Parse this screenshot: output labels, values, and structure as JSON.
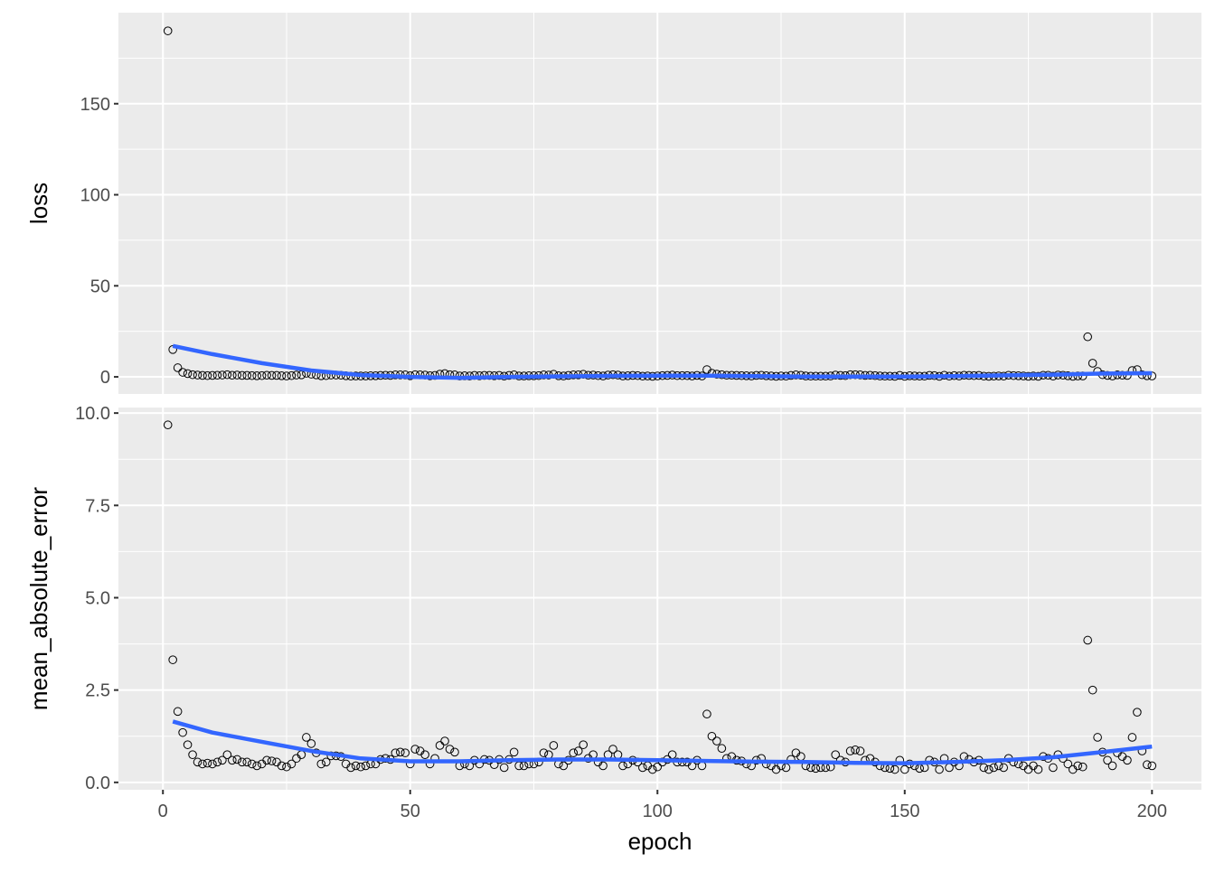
{
  "chart_data": {
    "type": "scatter",
    "xlabel": "epoch",
    "xlim": [
      -9,
      210
    ],
    "x_ticks": [
      0,
      50,
      100,
      150,
      200
    ],
    "grid": true,
    "smoother_color": "#3366FF",
    "panel_background": "#EBEBEB",
    "point_style": "open circle, black",
    "panels": [
      {
        "ylabel": "loss",
        "ylim": [
          -9.4,
          200
        ],
        "y_ticks": [
          0,
          50,
          100,
          150
        ],
        "y_tick_labels": [
          "0",
          "50",
          "100",
          "150"
        ],
        "values": [
          190,
          15,
          5,
          2.5,
          1.8,
          1.2,
          1,
          0.8,
          0.7,
          0.8,
          0.9,
          1,
          1.2,
          0.9,
          1,
          0.8,
          0.8,
          0.7,
          0.6,
          0.7,
          0.9,
          0.8,
          0.8,
          0.6,
          0.5,
          0.7,
          1,
          1.1,
          2,
          1.5,
          1.1,
          0.6,
          0.7,
          1,
          1,
          0.9,
          0.6,
          0.4,
          0.5,
          0.5,
          0.5,
          0.6,
          0.6,
          0.8,
          0.9,
          0.8,
          1.1,
          1.1,
          1.1,
          0.6,
          1.2,
          1.1,
          1,
          0.6,
          0.8,
          1.5,
          1.8,
          1.2,
          1.1,
          0.5,
          0.6,
          0.5,
          0.8,
          0.6,
          0.8,
          0.8,
          0.6,
          0.8,
          0.4,
          0.8,
          1.1,
          0.5,
          0.5,
          0.6,
          0.6,
          0.7,
          1.1,
          1,
          1.4,
          0.6,
          0.5,
          0.8,
          1.1,
          1.1,
          1.4,
          0.9,
          1,
          0.7,
          0.5,
          1,
          1.2,
          1,
          0.5,
          0.6,
          0.8,
          0.7,
          0.4,
          0.5,
          0.3,
          0.5,
          0.7,
          0.8,
          1,
          0.7,
          0.7,
          0.7,
          0.5,
          0.8,
          0.5,
          4,
          2,
          1.5,
          1.2,
          0.9,
          0.9,
          0.8,
          0.7,
          0.6,
          0.5,
          0.8,
          0.9,
          0.6,
          0.5,
          0.3,
          0.5,
          0.4,
          0.8,
          1.1,
          0.9,
          0.5,
          0.4,
          0.4,
          0.4,
          0.4,
          0.5,
          1,
          0.8,
          0.7,
          1.2,
          1.2,
          1.1,
          0.8,
          0.9,
          0.7,
          0.5,
          0.4,
          0.4,
          0.3,
          0.8,
          0.3,
          0.6,
          0.5,
          0.4,
          0.4,
          0.8,
          0.7,
          0.3,
          0.9,
          0.4,
          0.7,
          0.5,
          0.9,
          0.8,
          0.7,
          0.8,
          0.4,
          0.3,
          0.4,
          0.5,
          0.4,
          0.9,
          0.7,
          0.6,
          0.5,
          0.3,
          0.5,
          0.3,
          0.9,
          0.9,
          0.4,
          1,
          0.9,
          0.6,
          0.3,
          0.5,
          0.5,
          22,
          7.5,
          3,
          1.2,
          0.8,
          0.5,
          1.1,
          0.9,
          0.8,
          3.5,
          4,
          1.2,
          0.6,
          0.5
        ],
        "smooth": {
          "x": [
            2,
            10,
            20,
            30,
            40,
            50,
            60,
            70,
            80,
            90,
            100,
            110,
            120,
            130,
            140,
            150,
            160,
            170,
            180,
            190,
            200
          ],
          "y": [
            17,
            12.5,
            7.5,
            3.5,
            1,
            0,
            -0.5,
            0,
            0.3,
            0.5,
            0.6,
            0.6,
            0.4,
            0.2,
            0.2,
            0.2,
            0.4,
            0.8,
            1.2,
            1.8,
            2
          ]
        }
      },
      {
        "ylabel": "mean_absolute_error",
        "ylim": [
          -0.2,
          10.15
        ],
        "y_ticks": [
          0,
          2.5,
          5,
          7.5,
          10
        ],
        "y_tick_labels": [
          "0.0",
          "2.5",
          "5.0",
          "7.5",
          "10.0"
        ],
        "values": [
          9.68,
          3.32,
          1.92,
          1.35,
          1.02,
          0.75,
          0.55,
          0.5,
          0.52,
          0.5,
          0.55,
          0.6,
          0.75,
          0.6,
          0.62,
          0.55,
          0.55,
          0.5,
          0.45,
          0.5,
          0.6,
          0.58,
          0.55,
          0.45,
          0.42,
          0.5,
          0.65,
          0.75,
          1.22,
          1.05,
          0.8,
          0.5,
          0.55,
          0.72,
          0.72,
          0.7,
          0.5,
          0.4,
          0.45,
          0.42,
          0.45,
          0.5,
          0.5,
          0.62,
          0.65,
          0.62,
          0.8,
          0.82,
          0.8,
          0.5,
          0.9,
          0.85,
          0.75,
          0.5,
          0.65,
          1.0,
          1.12,
          0.9,
          0.82,
          0.45,
          0.5,
          0.45,
          0.6,
          0.5,
          0.62,
          0.6,
          0.48,
          0.62,
          0.4,
          0.62,
          0.82,
          0.45,
          0.45,
          0.5,
          0.5,
          0.55,
          0.8,
          0.75,
          1.0,
          0.5,
          0.45,
          0.6,
          0.8,
          0.85,
          1.02,
          0.65,
          0.75,
          0.55,
          0.45,
          0.75,
          0.9,
          0.75,
          0.45,
          0.5,
          0.6,
          0.55,
          0.4,
          0.45,
          0.35,
          0.42,
          0.55,
          0.62,
          0.75,
          0.55,
          0.55,
          0.55,
          0.45,
          0.6,
          0.45,
          1.85,
          1.25,
          1.12,
          0.92,
          0.65,
          0.7,
          0.6,
          0.58,
          0.5,
          0.45,
          0.6,
          0.65,
          0.5,
          0.45,
          0.35,
          0.45,
          0.4,
          0.62,
          0.8,
          0.7,
          0.45,
          0.4,
          0.38,
          0.4,
          0.4,
          0.42,
          0.75,
          0.6,
          0.55,
          0.85,
          0.88,
          0.85,
          0.6,
          0.65,
          0.55,
          0.45,
          0.4,
          0.38,
          0.35,
          0.6,
          0.35,
          0.5,
          0.45,
          0.38,
          0.4,
          0.6,
          0.55,
          0.35,
          0.65,
          0.4,
          0.55,
          0.45,
          0.7,
          0.62,
          0.55,
          0.6,
          0.4,
          0.35,
          0.4,
          0.45,
          0.4,
          0.65,
          0.55,
          0.5,
          0.45,
          0.35,
          0.45,
          0.35,
          0.7,
          0.65,
          0.4,
          0.75,
          0.65,
          0.5,
          0.35,
          0.45,
          0.42,
          3.85,
          2.5,
          1.22,
          0.82,
          0.6,
          0.45,
          0.8,
          0.7,
          0.6,
          1.22,
          1.9,
          0.85,
          0.48,
          0.45
        ],
        "smooth": {
          "x": [
            2,
            10,
            20,
            30,
            40,
            50,
            60,
            70,
            80,
            90,
            100,
            110,
            120,
            130,
            140,
            150,
            160,
            170,
            180,
            190,
            200
          ],
          "y": [
            1.65,
            1.35,
            1.1,
            0.85,
            0.65,
            0.57,
            0.57,
            0.6,
            0.62,
            0.62,
            0.6,
            0.58,
            0.56,
            0.55,
            0.53,
            0.52,
            0.55,
            0.6,
            0.68,
            0.82,
            0.97
          ]
        }
      }
    ]
  }
}
